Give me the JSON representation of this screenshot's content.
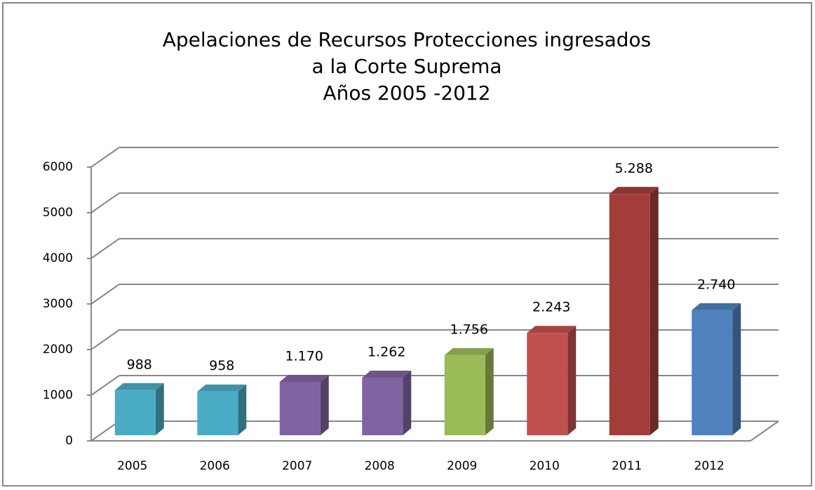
{
  "chart_data": {
    "type": "bar3d",
    "title": [
      "Apelaciones  de Recursos Protecciones ingresados",
      "a la Corte Suprema",
      "Años 2005 -2012"
    ],
    "categories": [
      "2005",
      "2006",
      "2007",
      "2008",
      "2009",
      "2010",
      "2011",
      "2012"
    ],
    "values": [
      988,
      958,
      1170,
      1262,
      1756,
      2243,
      5288,
      2740
    ],
    "value_labels": [
      "988",
      "958",
      "1.170",
      "1.262",
      "1.756",
      "2.243",
      "5.288",
      "2.740"
    ],
    "colors": [
      "#4bacc6",
      "#4bacc6",
      "#8064a2",
      "#8064a2",
      "#9bbb59",
      "#c0504d",
      "#a33d3a",
      "#4f81bd"
    ],
    "ylim": [
      0,
      6000
    ],
    "yticks": [
      0,
      1000,
      2000,
      3000,
      4000,
      5000,
      6000
    ],
    "grid": true
  }
}
